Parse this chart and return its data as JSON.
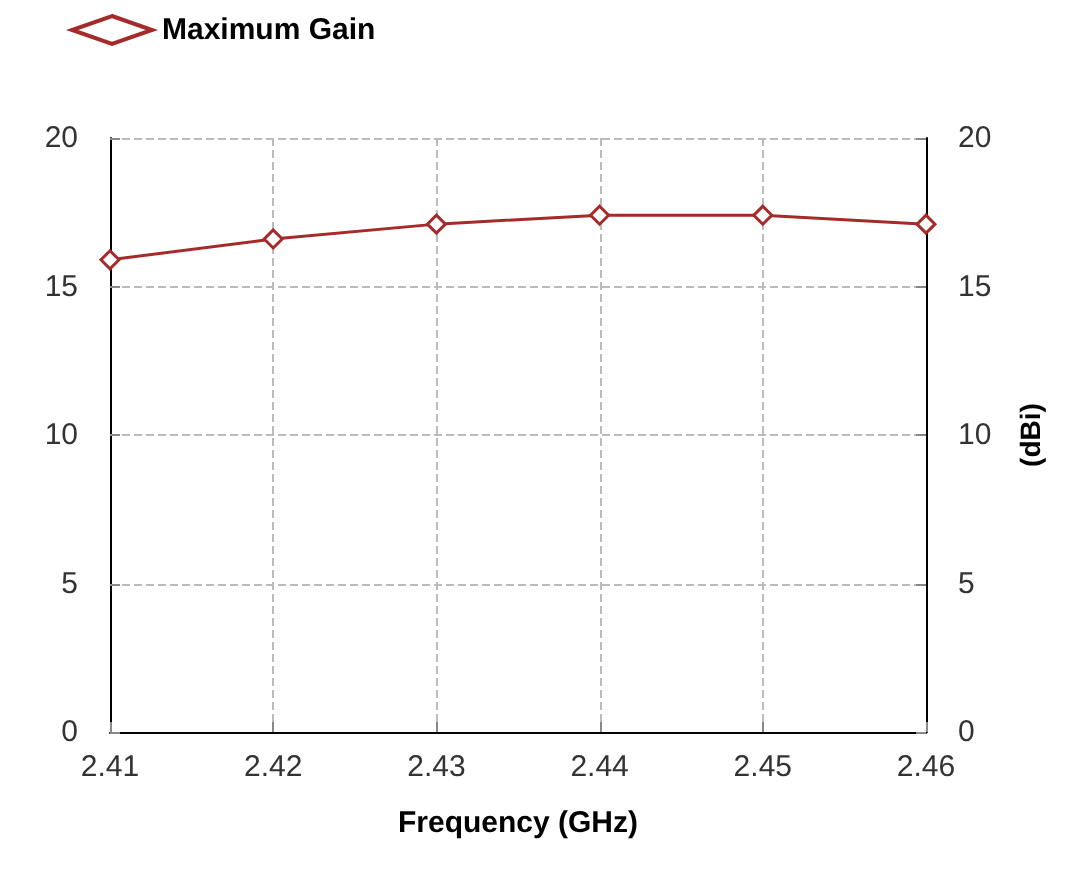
{
  "chart_data": {
    "type": "line",
    "xlabel": "Frequency (GHz)",
    "y2label": "(dBi)",
    "x": [
      2.41,
      2.42,
      2.43,
      2.44,
      2.45,
      2.46
    ],
    "series": [
      {
        "name": "Maximum Gain",
        "color": "#a52a2a",
        "values": [
          15.9,
          16.6,
          17.1,
          17.4,
          17.4,
          17.1
        ]
      }
    ],
    "xlim": [
      2.41,
      2.46
    ],
    "xticks": [
      2.41,
      2.42,
      2.43,
      2.44,
      2.45,
      2.46
    ],
    "ylim": [
      0,
      20
    ],
    "yticks": [
      0,
      5,
      10,
      15,
      20
    ],
    "y2lim": [
      0,
      20
    ],
    "y2ticks": [
      0,
      5,
      10,
      15,
      20
    ],
    "grid": true,
    "legend": "top",
    "marker": "diamond",
    "line_style": "solid"
  }
}
